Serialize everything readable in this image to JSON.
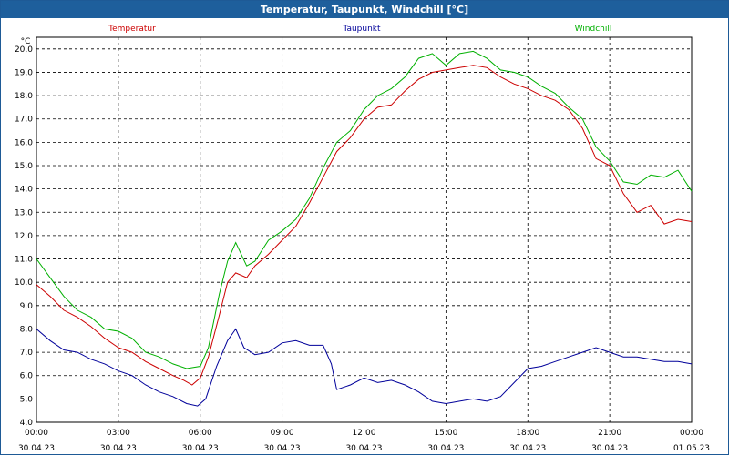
{
  "window": {
    "title": "Temperatur, Taupunkt, Windchill [°C]"
  },
  "chart_data": {
    "type": "line",
    "unit_label": "°C",
    "ylim": [
      4.0,
      20.5
    ],
    "yticks": [
      4.0,
      5.0,
      6.0,
      7.0,
      8.0,
      9.0,
      10.0,
      11.0,
      12.0,
      13.0,
      14.0,
      15.0,
      16.0,
      17.0,
      18.0,
      19.0,
      20.0
    ],
    "ytick_labels": [
      "4,0",
      "5,0",
      "6,0",
      "7,0",
      "8,0",
      "9,0",
      "10,0",
      "11,0",
      "12,0",
      "13,0",
      "14,0",
      "15,0",
      "16,0",
      "17,0",
      "18,0",
      "19,0",
      "20,0"
    ],
    "xlim": [
      0,
      24
    ],
    "xticks": [
      {
        "x": 0,
        "time": "00:00",
        "date": "30.04.23"
      },
      {
        "x": 3,
        "time": "03:00",
        "date": "30.04.23"
      },
      {
        "x": 6,
        "time": "06:00",
        "date": "30.04.23"
      },
      {
        "x": 9,
        "time": "09:00",
        "date": "30.04.23"
      },
      {
        "x": 12,
        "time": "12:00",
        "date": "30.04.23"
      },
      {
        "x": 15,
        "time": "15:00",
        "date": "30.04.23"
      },
      {
        "x": 18,
        "time": "18:00",
        "date": "30.04.23"
      },
      {
        "x": 21,
        "time": "21:00",
        "date": "30.04.23"
      },
      {
        "x": 24,
        "time": "00:00",
        "date": "01.05.23"
      }
    ],
    "grid": true,
    "legend_position": "top",
    "series": [
      {
        "name": "Temperatur",
        "color": "#cc0000",
        "points": [
          [
            0,
            9.9
          ],
          [
            0.5,
            9.4
          ],
          [
            1,
            8.8
          ],
          [
            1.5,
            8.5
          ],
          [
            2,
            8.1
          ],
          [
            2.5,
            7.6
          ],
          [
            3,
            7.2
          ],
          [
            3.5,
            7.0
          ],
          [
            4,
            6.6
          ],
          [
            4.5,
            6.3
          ],
          [
            5,
            6.0
          ],
          [
            5.4,
            5.8
          ],
          [
            5.7,
            5.6
          ],
          [
            6,
            5.9
          ],
          [
            6.3,
            6.8
          ],
          [
            6.7,
            8.6
          ],
          [
            7,
            10.0
          ],
          [
            7.3,
            10.4
          ],
          [
            7.7,
            10.2
          ],
          [
            8,
            10.7
          ],
          [
            8.5,
            11.2
          ],
          [
            9,
            11.8
          ],
          [
            9.5,
            12.4
          ],
          [
            10,
            13.4
          ],
          [
            10.5,
            14.5
          ],
          [
            11,
            15.6
          ],
          [
            11.5,
            16.2
          ],
          [
            12,
            17.0
          ],
          [
            12.5,
            17.5
          ],
          [
            13,
            17.6
          ],
          [
            13.5,
            18.2
          ],
          [
            14,
            18.7
          ],
          [
            14.5,
            19.0
          ],
          [
            15,
            19.1
          ],
          [
            15.5,
            19.2
          ],
          [
            16,
            19.3
          ],
          [
            16.5,
            19.2
          ],
          [
            17,
            18.8
          ],
          [
            17.5,
            18.5
          ],
          [
            18,
            18.3
          ],
          [
            18.5,
            18.0
          ],
          [
            19,
            17.8
          ],
          [
            19.5,
            17.4
          ],
          [
            20,
            16.6
          ],
          [
            20.5,
            15.3
          ],
          [
            21,
            15.0
          ],
          [
            21.5,
            13.8
          ],
          [
            22,
            13.0
          ],
          [
            22.5,
            13.3
          ],
          [
            23,
            12.5
          ],
          [
            23.5,
            12.7
          ],
          [
            24,
            12.6
          ]
        ]
      },
      {
        "name": "Taupunkt",
        "color": "#00009a",
        "points": [
          [
            0,
            8.0
          ],
          [
            0.5,
            7.5
          ],
          [
            1,
            7.1
          ],
          [
            1.5,
            7.0
          ],
          [
            2,
            6.7
          ],
          [
            2.5,
            6.5
          ],
          [
            3,
            6.2
          ],
          [
            3.5,
            6.0
          ],
          [
            4,
            5.6
          ],
          [
            4.5,
            5.3
          ],
          [
            5,
            5.1
          ],
          [
            5.5,
            4.8
          ],
          [
            5.9,
            4.7
          ],
          [
            6.2,
            5.0
          ],
          [
            6.6,
            6.4
          ],
          [
            7,
            7.5
          ],
          [
            7.3,
            8.0
          ],
          [
            7.6,
            7.2
          ],
          [
            8,
            6.9
          ],
          [
            8.5,
            7.0
          ],
          [
            9,
            7.4
          ],
          [
            9.5,
            7.5
          ],
          [
            10,
            7.3
          ],
          [
            10.5,
            7.3
          ],
          [
            10.8,
            6.5
          ],
          [
            11,
            5.4
          ],
          [
            11.5,
            5.6
          ],
          [
            12,
            5.9
          ],
          [
            12.5,
            5.7
          ],
          [
            13,
            5.8
          ],
          [
            13.5,
            5.6
          ],
          [
            14,
            5.3
          ],
          [
            14.5,
            4.9
          ],
          [
            15,
            4.8
          ],
          [
            15.5,
            4.9
          ],
          [
            16,
            5.0
          ],
          [
            16.5,
            4.9
          ],
          [
            17,
            5.1
          ],
          [
            17.5,
            5.7
          ],
          [
            18,
            6.3
          ],
          [
            18.5,
            6.4
          ],
          [
            19,
            6.6
          ],
          [
            19.5,
            6.8
          ],
          [
            20,
            7.0
          ],
          [
            20.5,
            7.2
          ],
          [
            21,
            7.0
          ],
          [
            21.5,
            6.8
          ],
          [
            22,
            6.8
          ],
          [
            22.5,
            6.7
          ],
          [
            23,
            6.6
          ],
          [
            23.5,
            6.6
          ],
          [
            24,
            6.5
          ]
        ]
      },
      {
        "name": "Windchill",
        "color": "#00b000",
        "points": [
          [
            0,
            11.0
          ],
          [
            0.5,
            10.2
          ],
          [
            1,
            9.4
          ],
          [
            1.5,
            8.8
          ],
          [
            2,
            8.5
          ],
          [
            2.5,
            8.0
          ],
          [
            3,
            7.9
          ],
          [
            3.5,
            7.6
          ],
          [
            4,
            7.0
          ],
          [
            4.5,
            6.8
          ],
          [
            5,
            6.5
          ],
          [
            5.5,
            6.3
          ],
          [
            6,
            6.4
          ],
          [
            6.3,
            7.2
          ],
          [
            6.7,
            9.5
          ],
          [
            7,
            10.9
          ],
          [
            7.3,
            11.7
          ],
          [
            7.7,
            10.7
          ],
          [
            8,
            10.9
          ],
          [
            8.5,
            11.8
          ],
          [
            9,
            12.2
          ],
          [
            9.5,
            12.7
          ],
          [
            10,
            13.6
          ],
          [
            10.5,
            14.9
          ],
          [
            11,
            16.0
          ],
          [
            11.5,
            16.5
          ],
          [
            12,
            17.4
          ],
          [
            12.5,
            18.0
          ],
          [
            13,
            18.3
          ],
          [
            13.5,
            18.8
          ],
          [
            14,
            19.6
          ],
          [
            14.5,
            19.8
          ],
          [
            15,
            19.3
          ],
          [
            15.5,
            19.8
          ],
          [
            16,
            19.9
          ],
          [
            16.5,
            19.6
          ],
          [
            17,
            19.1
          ],
          [
            17.5,
            19.0
          ],
          [
            18,
            18.8
          ],
          [
            18.5,
            18.4
          ],
          [
            19,
            18.1
          ],
          [
            19.5,
            17.5
          ],
          [
            20,
            17.0
          ],
          [
            20.5,
            15.8
          ],
          [
            21,
            15.2
          ],
          [
            21.5,
            14.3
          ],
          [
            22,
            14.2
          ],
          [
            22.5,
            14.6
          ],
          [
            23,
            14.5
          ],
          [
            23.5,
            14.8
          ],
          [
            24,
            13.9
          ]
        ]
      }
    ]
  }
}
